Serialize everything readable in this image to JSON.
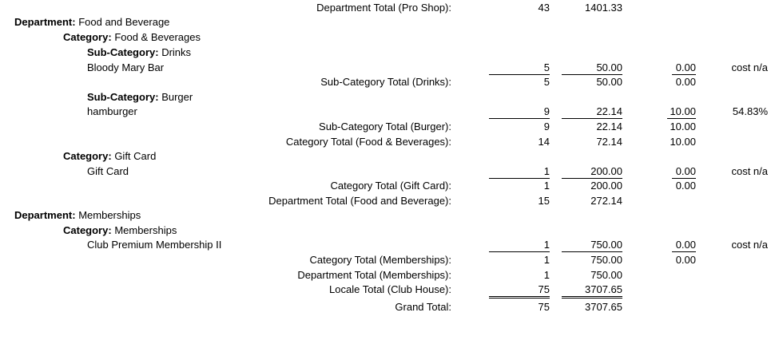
{
  "pro_shop_total": {
    "label": "Department Total (Pro Shop):",
    "qty": "43",
    "amount": "1401.33"
  },
  "dept_fb": {
    "prefix": "Department:",
    "name": "Food and Beverage"
  },
  "cat_fb": {
    "prefix": "Category:",
    "name": "Food & Beverages"
  },
  "subcat_drinks": {
    "prefix": "Sub-Category:",
    "name": "Drinks"
  },
  "item_bloody_mary": {
    "name": "Bloody Mary Bar",
    "qty": "5",
    "amount": "50.00",
    "cost": "0.00",
    "margin": "cost n/a"
  },
  "subcat_drinks_total": {
    "label": "Sub-Category Total (Drinks):",
    "qty": "5",
    "amount": "50.00",
    "cost": "0.00"
  },
  "subcat_burger": {
    "prefix": "Sub-Category:",
    "name": "Burger"
  },
  "item_hamburger": {
    "name": "hamburger",
    "qty": "9",
    "amount": "22.14",
    "cost": "10.00",
    "margin": "54.83%"
  },
  "subcat_burger_total": {
    "label": "Sub-Category Total (Burger):",
    "qty": "9",
    "amount": "22.14",
    "cost": "10.00"
  },
  "cat_fb_total": {
    "label": "Category Total (Food & Beverages):",
    "qty": "14",
    "amount": "72.14",
    "cost": "10.00"
  },
  "cat_gift": {
    "prefix": "Category:",
    "name": "Gift Card"
  },
  "item_gift_card": {
    "name": "Gift Card",
    "qty": "1",
    "amount": "200.00",
    "cost": "0.00",
    "margin": "cost n/a"
  },
  "cat_gift_total": {
    "label": "Category Total (Gift Card):",
    "qty": "1",
    "amount": "200.00",
    "cost": "0.00"
  },
  "dept_fb_total": {
    "label": "Department Total (Food and Beverage):",
    "qty": "15",
    "amount": "272.14"
  },
  "dept_mem": {
    "prefix": "Department:",
    "name": "Memberships"
  },
  "cat_mem": {
    "prefix": "Category:",
    "name": "Memberships"
  },
  "item_club": {
    "name": "Club Premium Membership II",
    "qty": "1",
    "amount": "750.00",
    "cost": "0.00",
    "margin": "cost n/a"
  },
  "cat_mem_total": {
    "label": "Category Total (Memberships):",
    "qty": "1",
    "amount": "750.00",
    "cost": "0.00"
  },
  "dept_mem_total": {
    "label": "Department Total (Memberships):",
    "qty": "1",
    "amount": "750.00"
  },
  "locale_total": {
    "label": "Locale Total (Club House):",
    "qty": "75",
    "amount": "3707.65"
  },
  "grand_total": {
    "label": "Grand Total:",
    "qty": "75",
    "amount": "3707.65"
  }
}
